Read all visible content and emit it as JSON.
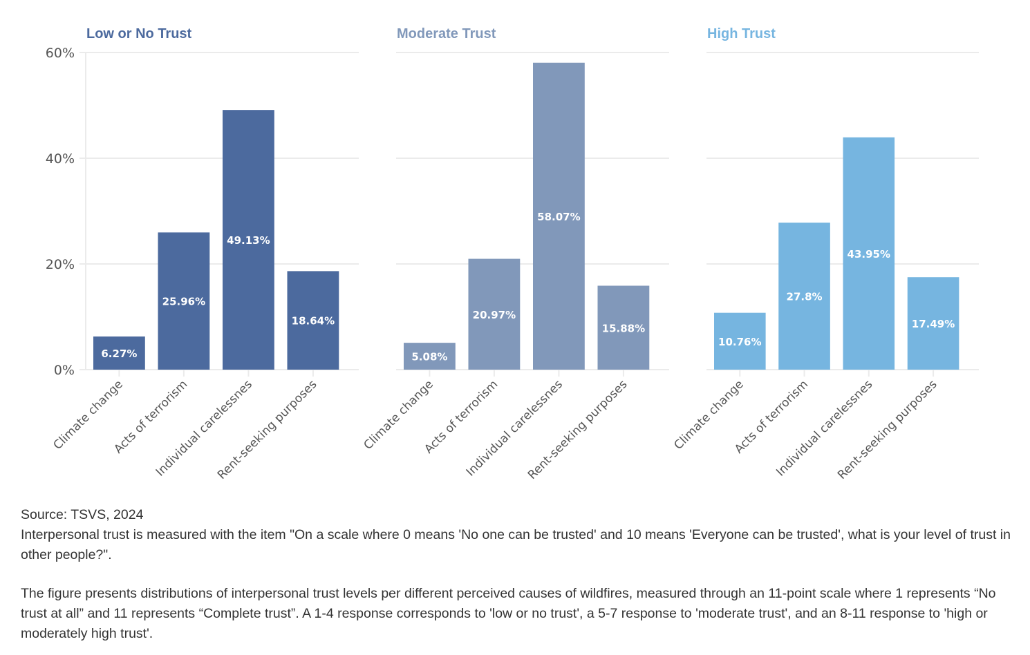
{
  "chart_data": [
    {
      "type": "bar",
      "title": "Low or No Trust",
      "color": "#4C6A9E",
      "categories": [
        "Climate change",
        "Acts of terrorism",
        "Individual carelessnes",
        "Rent-seeking purposes"
      ],
      "values": [
        6.27,
        25.96,
        49.13,
        18.64
      ],
      "labels": [
        "6.27%",
        "25.96%",
        "49.13%",
        "18.64%"
      ],
      "xlabel": "",
      "ylabel": "",
      "ylim": [
        0,
        60
      ],
      "yticks": [
        0,
        20,
        40,
        60
      ],
      "ytick_labels": [
        "0%",
        "20%",
        "40%",
        "60%"
      ],
      "grid": true
    },
    {
      "type": "bar",
      "title": "Moderate Trust",
      "color": "#8198BA",
      "categories": [
        "Climate change",
        "Acts of terrorism",
        "Individual carelessnes",
        "Rent-seeking purposes"
      ],
      "values": [
        5.08,
        20.97,
        58.07,
        15.88
      ],
      "labels": [
        "5.08%",
        "20.97%",
        "58.07%",
        "15.88%"
      ],
      "xlabel": "",
      "ylabel": "",
      "ylim": [
        0,
        60
      ],
      "yticks": [
        0,
        20,
        40,
        60
      ],
      "grid": true
    },
    {
      "type": "bar",
      "title": "High Trust",
      "color": "#76B5E0",
      "categories": [
        "Climate change",
        "Acts of terrorism",
        "Individual carelessnes",
        "Rent-seeking purposes"
      ],
      "values": [
        10.76,
        27.8,
        43.95,
        17.49
      ],
      "labels": [
        "10.76%",
        "27.8%",
        "43.95%",
        "17.49%"
      ],
      "xlabel": "",
      "ylabel": "",
      "ylim": [
        0,
        60
      ],
      "yticks": [
        0,
        20,
        40,
        60
      ],
      "grid": true
    }
  ],
  "notes": {
    "source": "Source: TSVS, 2024",
    "measure": "Interpersonal trust is measured with the item \"On a scale where 0 means 'No one can be trusted' and 10 means 'Everyone can be trusted', what is your level of trust in other people?\".",
    "description": "The figure presents distributions of interpersonal trust levels per different perceived causes of wildfires, measured through an 11-point scale where 1 represents “No trust at all” and 11 represents “Complete trust”. A 1-4 response corresponds to 'low or no trust', a 5-7 response to 'moderate trust', and an 8-11 response to 'high or moderately high trust'."
  }
}
